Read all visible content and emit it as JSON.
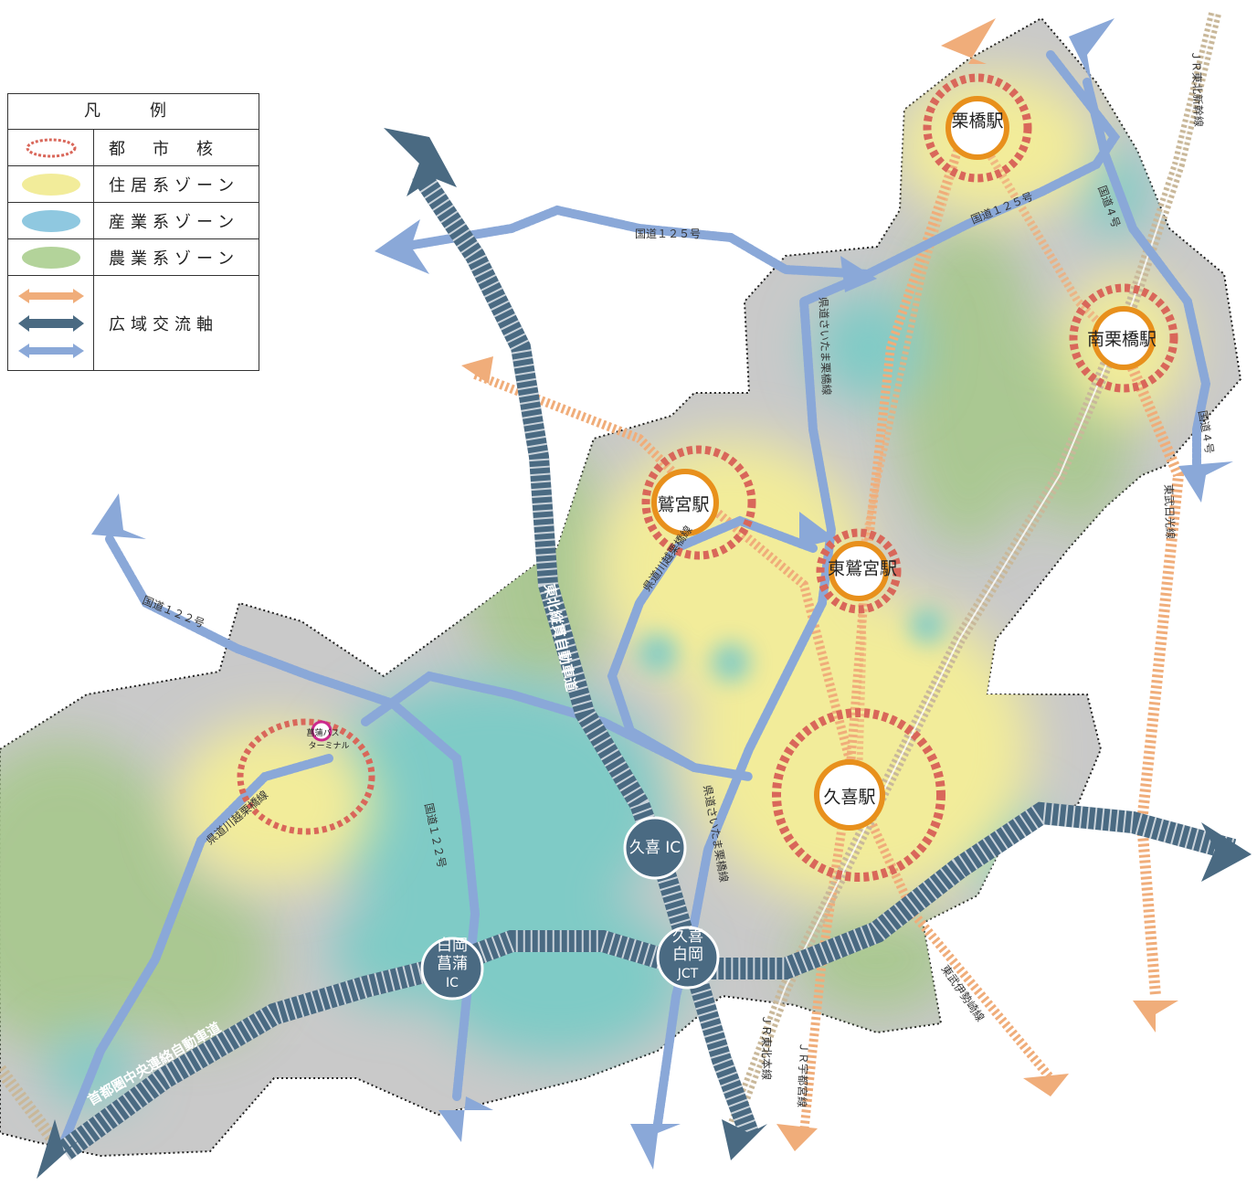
{
  "legend": {
    "title": "凡　例",
    "items": [
      {
        "label": "都　市　核",
        "symbol": "urban-core",
        "color": "#d9675a"
      },
      {
        "label": "住居系ゾーン",
        "symbol": "residential",
        "color": "#f2ec9a"
      },
      {
        "label": "産業系ゾーン",
        "symbol": "industrial",
        "color": "#8fc8e0"
      },
      {
        "label": "農業系ゾーン",
        "symbol": "agricultural",
        "color": "#b3d39a"
      },
      {
        "label": "広域交流軸",
        "symbol": "exchange-axis",
        "colors": [
          "#f0ad7a",
          "#4a6a82",
          "#8aa8d8"
        ]
      }
    ]
  },
  "stations": {
    "kurihashi": "栗橋駅",
    "minami_kurihashi": "南栗橋駅",
    "washinomiya": "鷲宮駅",
    "higashi_washinomiya": "東鷲宮駅",
    "kuki": "久喜駅",
    "shobu_bus": "菖蒲バス\nターミナル"
  },
  "interchanges": {
    "kuki_ic": "久喜 IC",
    "shiraoka_shobu_ic": [
      "白岡",
      "菖蒲",
      "IC"
    ],
    "kuki_shiraoka_jct": [
      "久喜",
      "白岡",
      "JCT"
    ]
  },
  "roads": {
    "tohoku_expressway": "東北縦貫自動車道",
    "ken_o_expressway": "首都圏中央連絡自動車道",
    "route125_a": "国道１２５号",
    "route125_b": "国道１２５号",
    "route122_a": "国道１２２号",
    "route122_b": "国道１２２号",
    "route4_a": "国道４号",
    "route4_b": "国道４号",
    "pref_saitama_kurihashi_a": "県道さいたま栗橋線",
    "pref_saitama_kurihashi_b": "県道さいたま栗橋線",
    "pref_kawagoe_kurihashi_a": "県道川越栗橋線",
    "pref_kawagoe_kurihashi_b": "県道川越栗橋線"
  },
  "railways": {
    "jr_tohoku_shinkansen": "ＪＲ東北新幹線",
    "tobu_nikko": "東武日光線",
    "jr_utsunomiya": "ＪＲ宇都宮線",
    "jr_tohoku": "ＪＲ東北本線",
    "tobu_isesaki": "東武伊勢崎線"
  },
  "colors": {
    "base_gray": "#c9c9c9",
    "residential": "#f2ec9a",
    "industrial": "#7fcbc6",
    "agricultural": "#a9c890",
    "urban_core": "#d9675a",
    "station_ring": "#e8901c",
    "expressway": "#4a6a82",
    "regional_road": "#8aa8d8",
    "railway_axis": "#f0ad7a"
  }
}
